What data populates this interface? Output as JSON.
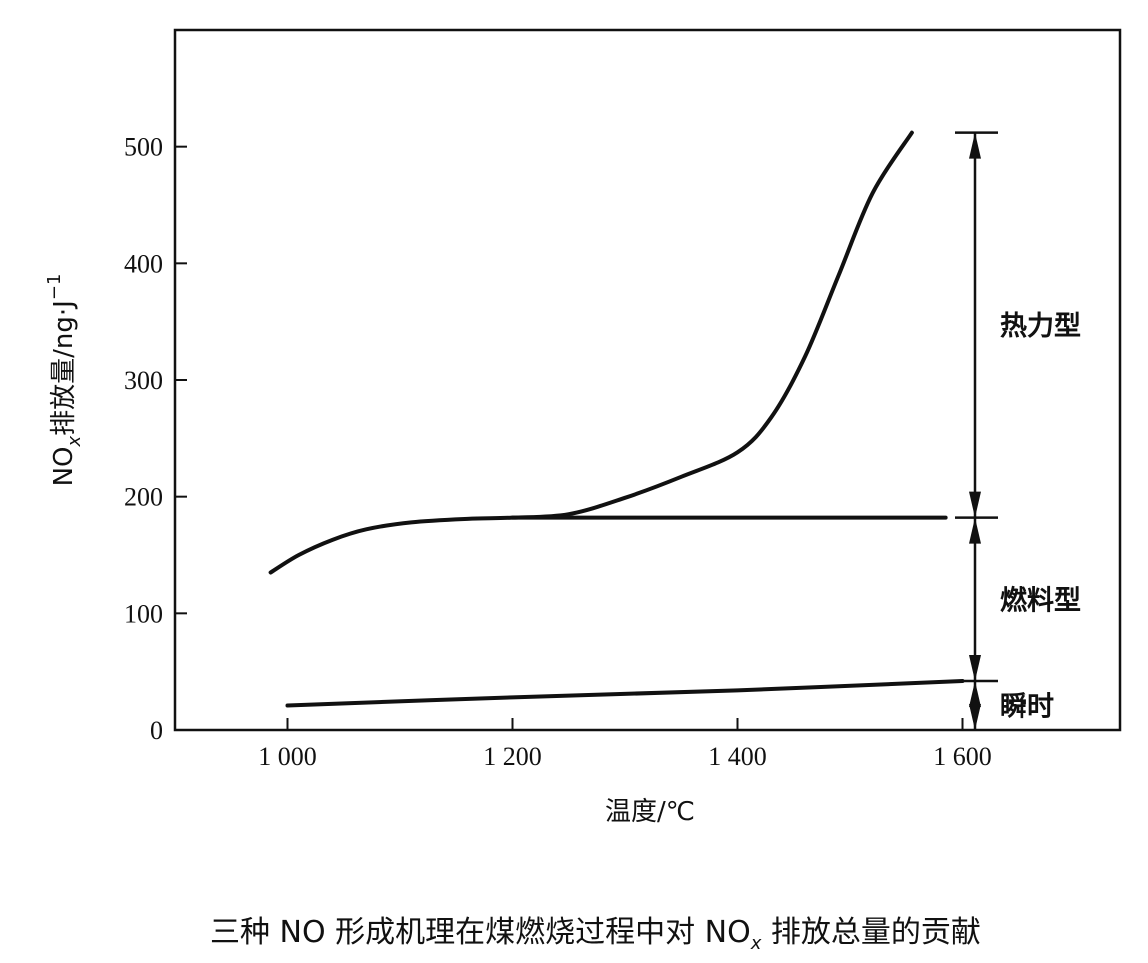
{
  "chart_data": {
    "type": "line",
    "xlabel": "温度/℃",
    "ylabel_main": "NO",
    "ylabel_sub": "x",
    "ylabel_rest": "排放量/ng·J",
    "ylabel_sup": "−1",
    "xlim": [
      900,
      1740
    ],
    "ylim": [
      0,
      600
    ],
    "x_ticks": [
      1000,
      1200,
      1400,
      1600
    ],
    "x_tick_labels": [
      "1 000",
      "1 200",
      "1 400",
      "1 600"
    ],
    "y_ticks": [
      0,
      100,
      200,
      300,
      400,
      500
    ],
    "y_tick_labels": [
      "0",
      "100",
      "200",
      "300",
      "400",
      "500"
    ],
    "grid": false,
    "series": [
      {
        "x": [
          985,
          1010,
          1040,
          1070,
          1110,
          1160,
          1200,
          1250,
          1300,
          1350,
          1400,
          1430,
          1460,
          1490,
          1520,
          1555
        ],
        "y": [
          135,
          150,
          163,
          172,
          178,
          181,
          182,
          185,
          199,
          217,
          238,
          268,
          320,
          390,
          460,
          512
        ]
      },
      {
        "x": [
          1200,
          1250,
          1300,
          1400,
          1500,
          1585
        ],
        "y": [
          182,
          182,
          182,
          182,
          182,
          182
        ]
      },
      {
        "x": [
          1000,
          1200,
          1400,
          1600
        ],
        "y": [
          21,
          28,
          34,
          42
        ]
      }
    ],
    "bands": [
      {
        "label": "热力型",
        "from": 182,
        "to": 512
      },
      {
        "label": "燃料型",
        "from": 42,
        "to": 182
      },
      {
        "label": "瞬时",
        "from": 0,
        "to": 42
      }
    ]
  },
  "caption": {
    "prefix": "三种 NO 形成机理在煤燃烧过程中对 NO",
    "sub": "x",
    "suffix": " 排放总量的贡献"
  }
}
